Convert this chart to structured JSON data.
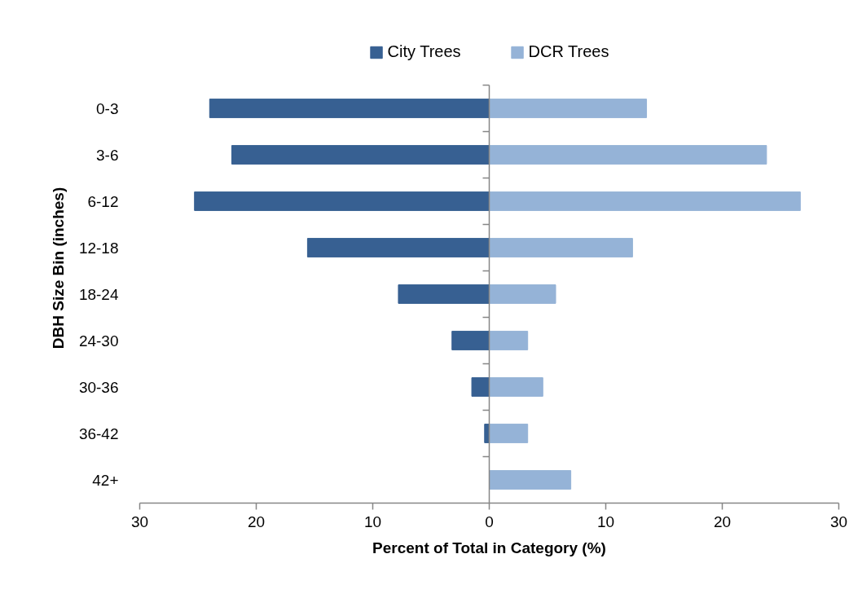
{
  "chart_data": {
    "type": "bar",
    "orientation": "horizontal",
    "stacked": true,
    "categories": [
      "0-3",
      "3-6",
      "6-12",
      "12-18",
      "18-24",
      "24-30",
      "30-36",
      "36-42",
      "42+"
    ],
    "series": [
      {
        "name": "City Trees",
        "color": "#376092",
        "values": [
          -24.0,
          -22.1,
          -25.3,
          -15.6,
          -7.8,
          -3.2,
          -1.5,
          -0.4,
          0
        ]
      },
      {
        "name": "DCR Trees",
        "color": "#95b3d7",
        "values": [
          13.5,
          23.8,
          26.7,
          12.3,
          5.7,
          3.3,
          4.6,
          3.3,
          7.0
        ]
      }
    ],
    "xlim": [
      -30,
      30
    ],
    "xticks": [
      {
        "value": -30,
        "label": "30"
      },
      {
        "value": -20,
        "label": "20"
      },
      {
        "value": -10,
        "label": "10"
      },
      0,
      10,
      20,
      30
    ],
    "xlabel": "Percent of Total in Category (%)",
    "ylabel": "DBH Size Bin (inches)",
    "legend": "top"
  }
}
